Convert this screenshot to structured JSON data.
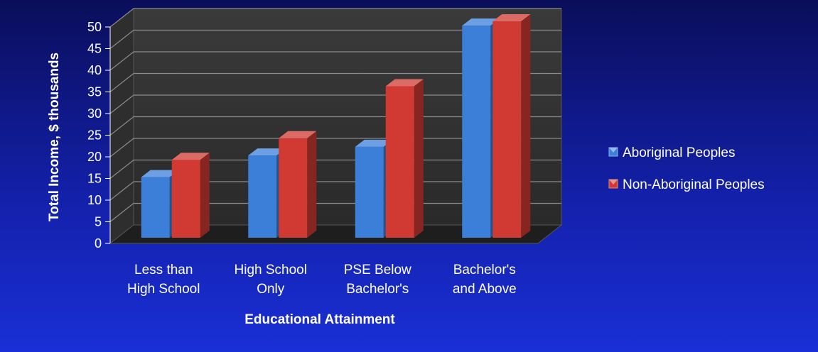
{
  "chart_data": {
    "type": "bar",
    "title": "",
    "xlabel": "Educational Attainment",
    "ylabel": "Total Income, $ thousands",
    "ylim": [
      0,
      50
    ],
    "yticks": [
      0,
      5,
      10,
      15,
      20,
      25,
      30,
      35,
      40,
      45,
      50
    ],
    "categories": [
      [
        "Less than",
        "High School"
      ],
      [
        "High School",
        "Only"
      ],
      [
        "PSE Below",
        "Bachelor's"
      ],
      [
        "Bachelor's",
        "and Above"
      ]
    ],
    "series": [
      {
        "name": "Aboriginal Peoples",
        "values": [
          14,
          19,
          21,
          49
        ],
        "color": "#3b7fd9"
      },
      {
        "name": "Non-Aboriginal Peoples",
        "values": [
          18,
          23,
          35,
          50
        ],
        "color": "#d03a32"
      }
    ],
    "grid": true,
    "legend": "right",
    "style": "3d-clustered-column"
  }
}
